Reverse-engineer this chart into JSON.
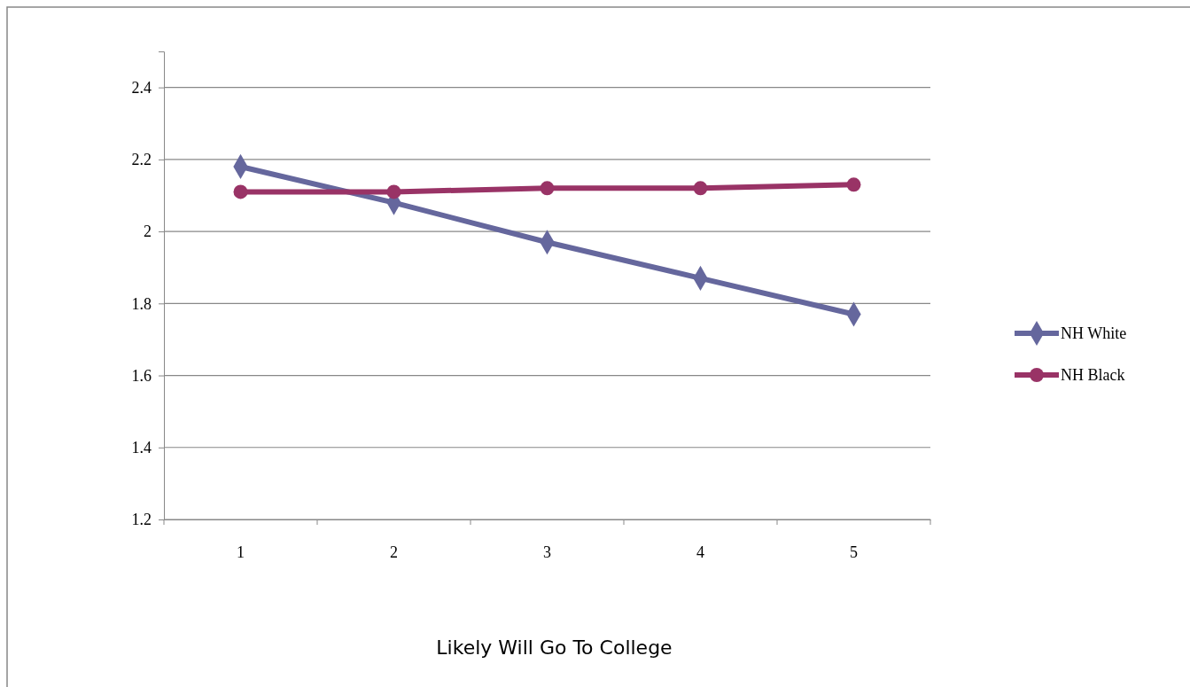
{
  "chart_data": {
    "type": "line",
    "xlabel": "Likely Will Go To College",
    "categories": [
      "1",
      "2",
      "3",
      "4",
      "5"
    ],
    "ylim": [
      1.2,
      2.5
    ],
    "yticks": [
      1.2,
      1.4,
      1.6,
      1.8,
      2,
      2.2,
      2.4
    ],
    "grid": "y",
    "legend": "right",
    "series": [
      {
        "name": "NH White",
        "color": "#65679d",
        "marker": "diamond",
        "values": [
          2.18,
          2.08,
          1.97,
          1.87,
          1.77
        ]
      },
      {
        "name": "NH Black",
        "color": "#993366",
        "marker": "circle",
        "values": [
          2.11,
          2.11,
          2.12,
          2.12,
          2.13
        ]
      }
    ]
  }
}
